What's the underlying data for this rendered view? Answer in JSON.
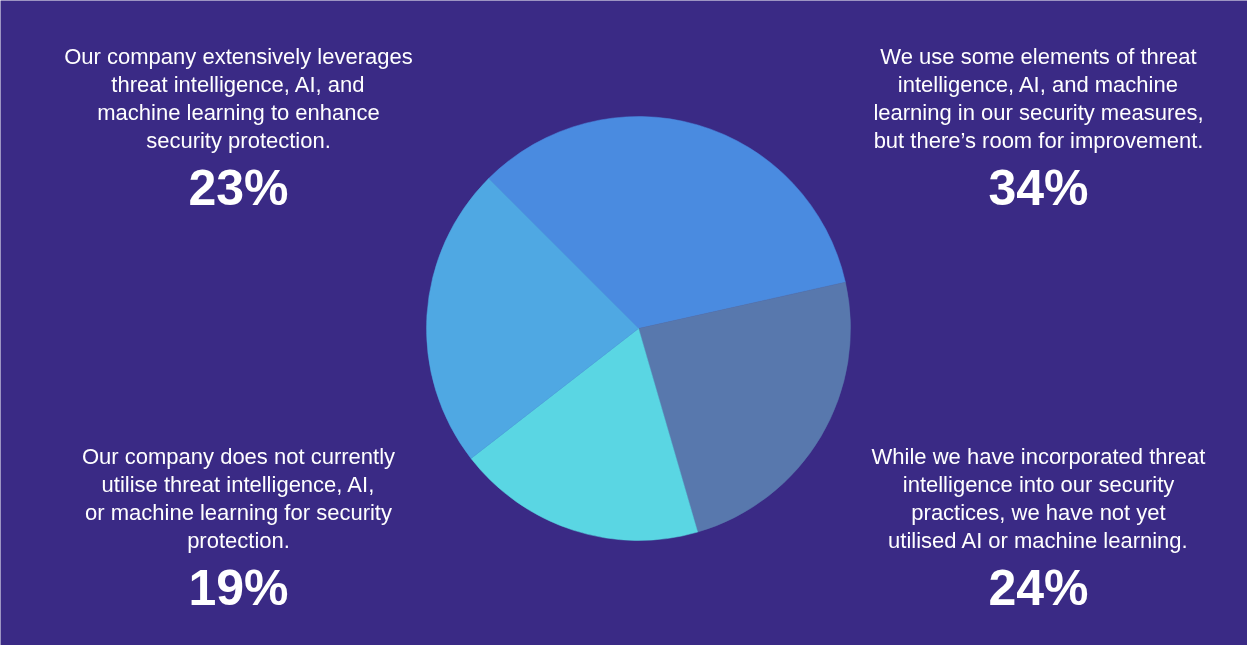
{
  "chart_data": {
    "type": "pie",
    "categories": [
      "We use some elements of threat intelligence, AI, and machine learning in our security measures, but there’s room for improvement.",
      "While we have incorporated threat intelligence into our security practices, we have not yet utilised AI or machine learning.",
      "Our company does not currently utilise threat intelligence, AI, or machine learning for security protection.",
      "Our company extensively leverages threat intelligence, AI, and machine learning to enhance security protection."
    ],
    "values": [
      34,
      24,
      19,
      23
    ],
    "colors": [
      "#4a8be0",
      "#5878ad",
      "#5ad6e3",
      "#4fa8e3"
    ],
    "value_labels": [
      "34%",
      "24%",
      "19%",
      "23%"
    ]
  }
}
